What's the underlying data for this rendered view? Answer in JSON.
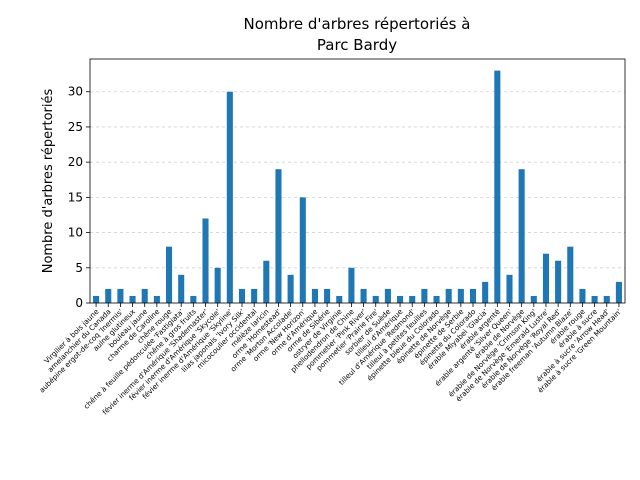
{
  "chart_data": {
    "type": "bar",
    "title": [
      "Nombre d'arbres répertoriés à",
      "Parc Bardy"
    ],
    "y_label": "Nombre d'arbres répertoriés",
    "categories": [
      "Virgilier à bois jaune",
      "amelanchier du Canada",
      "aubépine ergot-de-coq 'Inermis'",
      "aulne glutineux",
      "bouleau jaune",
      "charme de Caroline",
      "chêne rouge",
      "chêne à feuille pédonculée 'Fastigiata'",
      "chêne à gros fruits",
      "févier inerme d'Amérique 'Shademaster'",
      "févier inerme d'Amérique 'Skycole'",
      "févier inerme d'Amérique 'Skyline'",
      "lilas japonais 'Ivory Silk'",
      "micocoulier occidental",
      "mélèze laricin",
      "orme 'Homestead'",
      "orme 'Morton Accolade'",
      "orme 'New Horizon'",
      "orme d'Amérique",
      "orme de Sibérie",
      "ostryer de Virginie",
      "phellodendron de Chine",
      "pommetier 'Pink River'",
      "pommetier 'Prairie Fire'",
      "sorbier de Suède",
      "tilleul d'Amérique",
      "tilleul d'Amérique 'Redmond'",
      "tilleul à petites feuilles",
      "épinette bleue du Colorado",
      "épinette de Norvège",
      "épinette de Serbie",
      "épinette du Colorado",
      "érable Miyabei 'Glacia'",
      "érable argenté",
      "érable argenté 'Silver Queen'",
      "érable de Norvège",
      "érable de Norvège 'Crimson King'",
      "érable de Norvège 'Emerald Lustre'",
      "érable de Norvège 'Royal Red'",
      "érable freeman 'Autumn Blaze'",
      "érable rouge",
      "érable à sucre",
      "érable à sucre 'Arrow Head'",
      "érable à sucre 'Green Mountain'"
    ],
    "values": [
      1,
      2,
      2,
      1,
      2,
      1,
      8,
      4,
      1,
      12,
      5,
      30,
      2,
      2,
      6,
      19,
      4,
      15,
      2,
      2,
      1,
      5,
      2,
      1,
      2,
      1,
      1,
      2,
      1,
      2,
      2,
      2,
      3,
      33,
      4,
      19,
      1,
      7,
      6,
      8,
      2,
      1,
      1,
      3
    ],
    "color": "#1f77b4",
    "ylim": [
      0,
      34.65
    ],
    "yticks": [
      0,
      5,
      10,
      15,
      20,
      25,
      30
    ],
    "grid": true
  }
}
